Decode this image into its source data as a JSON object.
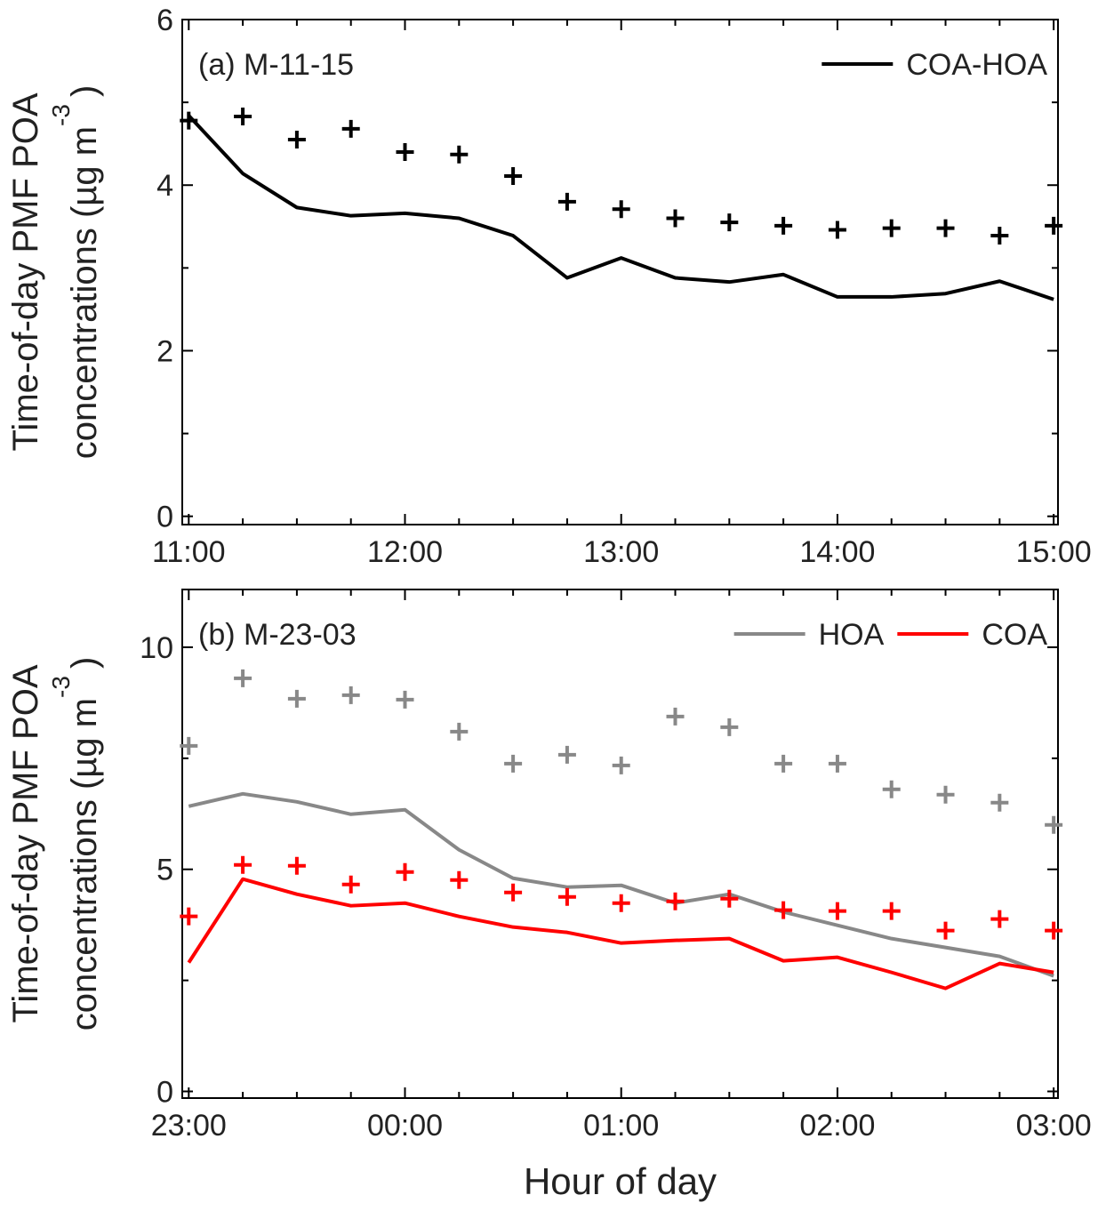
{
  "chart_data": [
    {
      "type": "line",
      "panel_label": "(a) M-11-15",
      "ylabel": [
        "Time-of-day PMF POA",
        "concentrations (µg m",
        "-3",
        ")"
      ],
      "x": [
        11,
        11.25,
        11.5,
        11.75,
        12,
        12.25,
        12.5,
        12.75,
        13,
        13.25,
        13.5,
        13.75,
        14,
        14.25,
        14.5,
        14.75,
        15
      ],
      "xlim": [
        10.97,
        15.02
      ],
      "xticks": [
        {
          "value": 11,
          "label": "11:00"
        },
        {
          "value": 12,
          "label": "12:00"
        },
        {
          "value": 13,
          "label": "13:00"
        },
        {
          "value": 14,
          "label": "14:00"
        },
        {
          "value": 15,
          "label": "15:00"
        }
      ],
      "xminor": [
        11.25,
        11.5,
        11.75,
        12.25,
        12.5,
        12.75,
        13.25,
        13.5,
        13.75,
        14.25,
        14.5,
        14.75
      ],
      "ylim": [
        -0.1,
        6
      ],
      "yticks": [
        0,
        2,
        4,
        6
      ],
      "yminor": [
        1,
        3,
        5
      ],
      "legend": "upper right",
      "series": [
        {
          "name": "COA-HOA",
          "color": "#000000",
          "values": [
            4.84,
            4.14,
            3.73,
            3.63,
            3.66,
            3.6,
            3.39,
            2.88,
            3.12,
            2.88,
            2.83,
            2.92,
            2.65,
            2.65,
            2.69,
            2.84,
            2.62
          ],
          "marker_values": [
            4.78,
            4.83,
            4.55,
            4.68,
            4.4,
            4.37,
            4.11,
            3.8,
            3.71,
            3.6,
            3.55,
            3.51,
            3.46,
            3.48,
            3.48,
            3.39,
            3.51
          ]
        }
      ]
    },
    {
      "type": "line",
      "panel_label": "(b) M-23-03",
      "ylabel": [
        "Time-of-day PMF POA",
        "concentrations (µg m",
        "-3",
        ")"
      ],
      "xlabel": "Hour of day",
      "x": [
        23,
        23.25,
        23.5,
        23.75,
        24,
        24.25,
        24.5,
        24.75,
        25,
        25.25,
        25.5,
        25.75,
        26,
        26.25,
        26.5,
        26.75,
        27
      ],
      "xlim": [
        22.97,
        27.02
      ],
      "xticks": [
        {
          "value": 23,
          "label": "23:00"
        },
        {
          "value": 24,
          "label": "00:00"
        },
        {
          "value": 25,
          "label": "01:00"
        },
        {
          "value": 26,
          "label": "02:00"
        },
        {
          "value": 27,
          "label": "03:00"
        }
      ],
      "xminor": [
        23.25,
        23.5,
        23.75,
        24.25,
        24.5,
        24.75,
        25.25,
        25.5,
        25.75,
        26.25,
        26.5,
        26.75
      ],
      "ylim": [
        -0.15,
        11.3
      ],
      "yticks": [
        0,
        5,
        10
      ],
      "yminor": [
        2.5,
        7.5
      ],
      "legend": "upper right",
      "series": [
        {
          "name": "HOA",
          "color": "#888888",
          "values": [
            6.42,
            6.7,
            6.52,
            6.24,
            6.34,
            5.44,
            4.8,
            4.6,
            4.64,
            4.24,
            4.44,
            4.04,
            3.74,
            3.44,
            3.24,
            3.04,
            2.6
          ],
          "marker_values": [
            7.78,
            9.3,
            8.84,
            8.92,
            8.82,
            8.1,
            7.38,
            7.58,
            7.34,
            8.44,
            8.2,
            7.38,
            7.38,
            6.8,
            6.68,
            6.5,
            6
          ]
        },
        {
          "name": "COA",
          "color": "#ff0000",
          "values": [
            2.9,
            4.78,
            4.44,
            4.18,
            4.24,
            3.94,
            3.7,
            3.58,
            3.34,
            3.4,
            3.44,
            2.94,
            3.02,
            2.68,
            2.32,
            2.88,
            2.68
          ],
          "marker_values": [
            3.94,
            5.1,
            5.08,
            4.66,
            4.94,
            4.76,
            4.48,
            4.38,
            4.24,
            4.28,
            4.34,
            4.08,
            4.06,
            4.06,
            3.62,
            3.88,
            3.62
          ]
        }
      ]
    }
  ]
}
